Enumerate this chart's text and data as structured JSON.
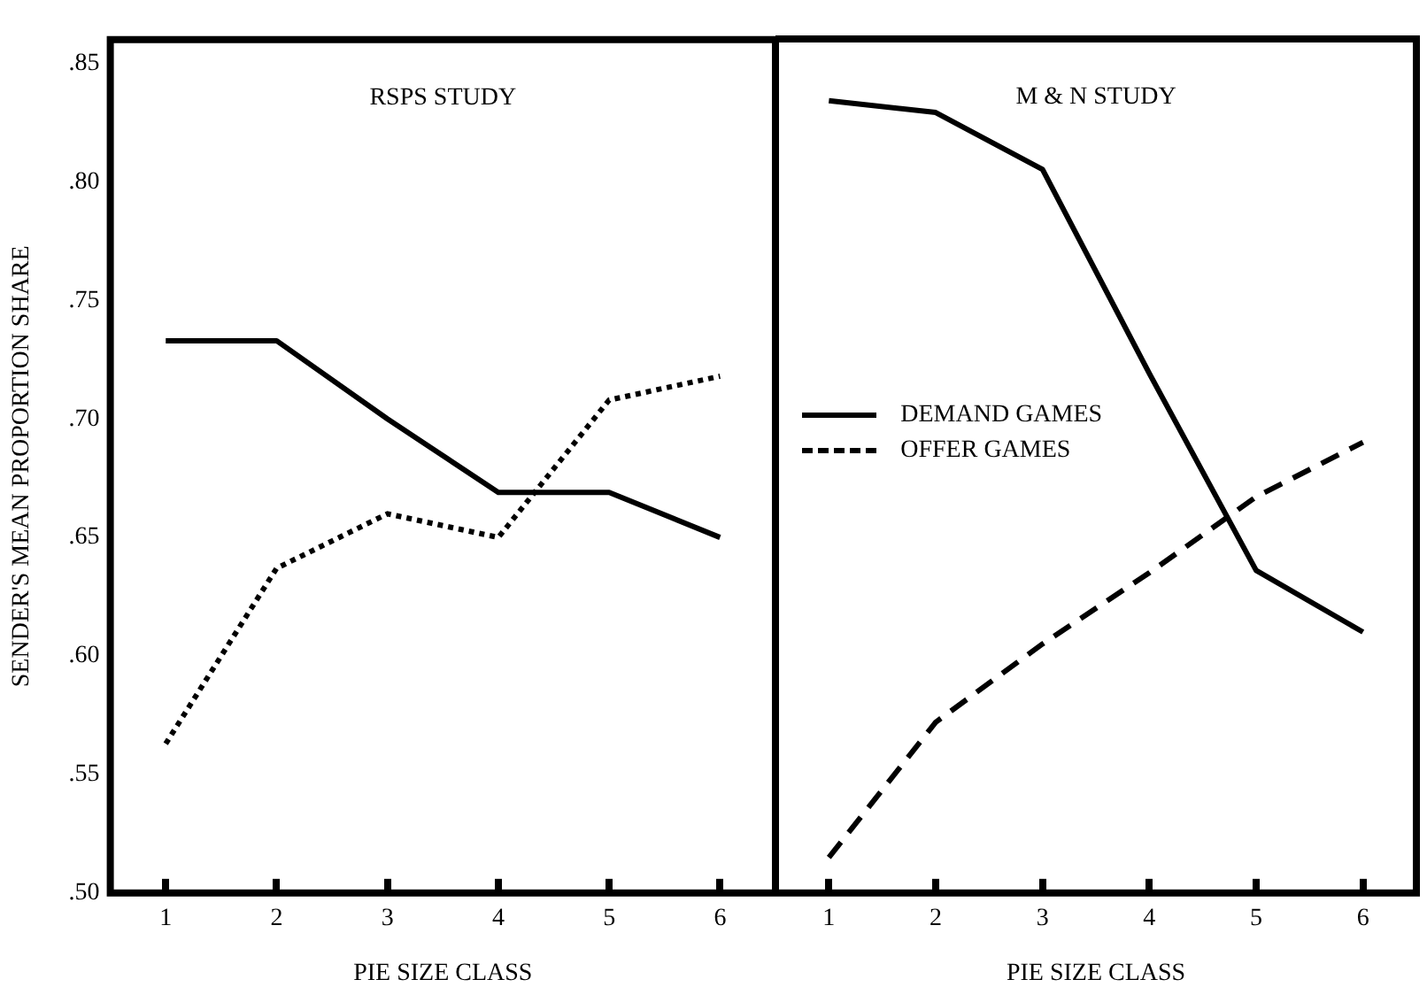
{
  "chart_data": [
    {
      "type": "line",
      "title": "RSPS STUDY",
      "xlabel": "PIE SIZE CLASS",
      "ylabel": "SENDER'S MEAN PROPORTION SHARE",
      "categories": [
        "1",
        "2",
        "3",
        "4",
        "5",
        "6"
      ],
      "ylim": [
        0.5,
        0.86
      ],
      "yticks": [
        {
          "value": 0.5,
          "label": ".50"
        },
        {
          "value": 0.55,
          "label": ".55"
        },
        {
          "value": 0.6,
          "label": ".60"
        },
        {
          "value": 0.65,
          "label": ".65"
        },
        {
          "value": 0.7,
          "label": ".70"
        },
        {
          "value": 0.75,
          "label": ".75"
        },
        {
          "value": 0.8,
          "label": ".80"
        },
        {
          "value": 0.85,
          "label": ".85"
        }
      ],
      "grid": false,
      "legend": false,
      "marker": "none",
      "series": [
        {
          "color": "#000000",
          "line_style": "solid",
          "values": [
            0.733,
            0.733,
            0.7,
            0.669,
            0.669,
            0.65
          ]
        },
        {
          "color": "#000000",
          "line_style": "dotted",
          "values": [
            0.563,
            0.637,
            0.66,
            0.65,
            0.708,
            0.718
          ]
        }
      ]
    },
    {
      "type": "line",
      "title": "M & N STUDY",
      "xlabel": "PIE SIZE CLASS",
      "categories": [
        "1",
        "2",
        "3",
        "4",
        "5",
        "6"
      ],
      "ylim": [
        0.5,
        0.86
      ],
      "tick_labels": "x",
      "grid": false,
      "legend": "center left",
      "marker": "none",
      "series": [
        {
          "name": "DEMAND GAMES",
          "color": "#000000",
          "line_style": "solid",
          "values": [
            0.834,
            0.829,
            0.805,
            0.719,
            0.636,
            0.61
          ]
        },
        {
          "name": "OFFER GAMES",
          "color": "#000000",
          "line_style": "dashed",
          "values": [
            0.515,
            0.572,
            0.605,
            0.635,
            0.667,
            0.69
          ]
        }
      ]
    }
  ]
}
